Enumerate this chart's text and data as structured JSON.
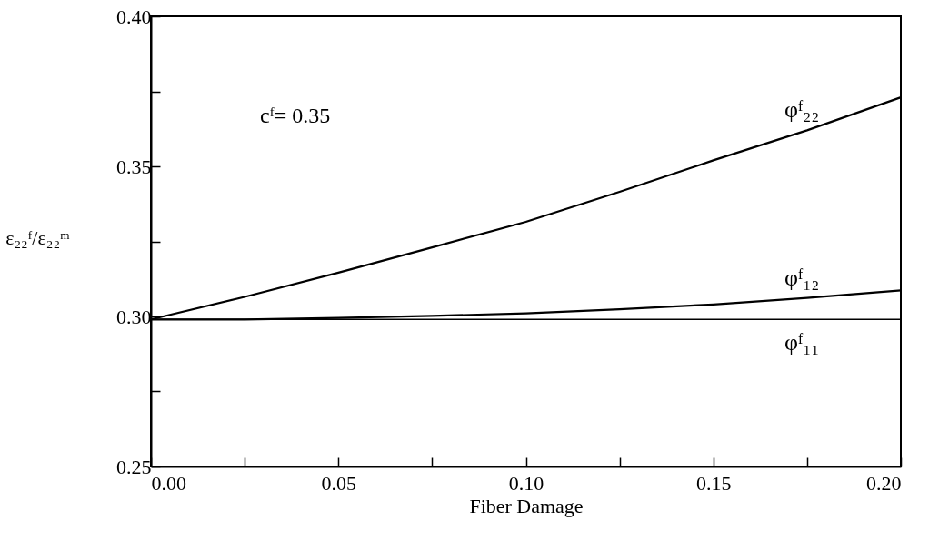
{
  "chart_data": {
    "type": "line",
    "xlabel": "Fiber Damage",
    "ylabel": "ε₂₂ᶠ/ε₂₂ᵐ",
    "x": [
      0,
      0.025,
      0.05,
      0.075,
      0.1,
      0.125,
      0.15,
      0.175,
      0.2
    ],
    "series": [
      {
        "name": "φᶠ₂₂",
        "color": "#000000",
        "values": [
          0.299,
          0.3065,
          0.3146,
          0.323,
          0.3315,
          0.3415,
          0.352,
          0.362,
          0.373
        ]
      },
      {
        "name": "φᶠ₁₂",
        "color": "#000000",
        "values": [
          0.299,
          0.299,
          0.2995,
          0.3002,
          0.301,
          0.3024,
          0.304,
          0.3062,
          0.3087
        ]
      },
      {
        "name": "φᶠ₁₁",
        "color": "#000000",
        "values": [
          0.299,
          0.299,
          0.299,
          0.299,
          0.299,
          0.299,
          0.299,
          0.299,
          0.299
        ]
      }
    ],
    "annotations": [
      "cᶠ= 0.35"
    ],
    "xlim": [
      0,
      0.2
    ],
    "xticks": [
      {
        "value": 0,
        "label": "0.00"
      },
      {
        "value": 0.025,
        "label": null
      },
      0.05,
      {
        "value": 0.075,
        "label": null
      },
      {
        "value": 0.1,
        "label": "0.10"
      },
      {
        "value": 0.125,
        "label": null
      },
      0.15,
      {
        "value": 0.175,
        "label": null
      },
      {
        "value": 0.2,
        "label": "0.20"
      }
    ],
    "ylim": [
      0.25,
      0.4
    ],
    "yticks": [
      0.25,
      {
        "value": 0.275,
        "label": null
      },
      {
        "value": 0.3,
        "label": "0.30"
      },
      {
        "value": 0.325,
        "label": null
      },
      0.35,
      {
        "value": 0.375,
        "label": null
      },
      {
        "value": 0.4,
        "label": "0.40"
      }
    ],
    "grid": false,
    "marker": "none",
    "line_style": "solid"
  }
}
